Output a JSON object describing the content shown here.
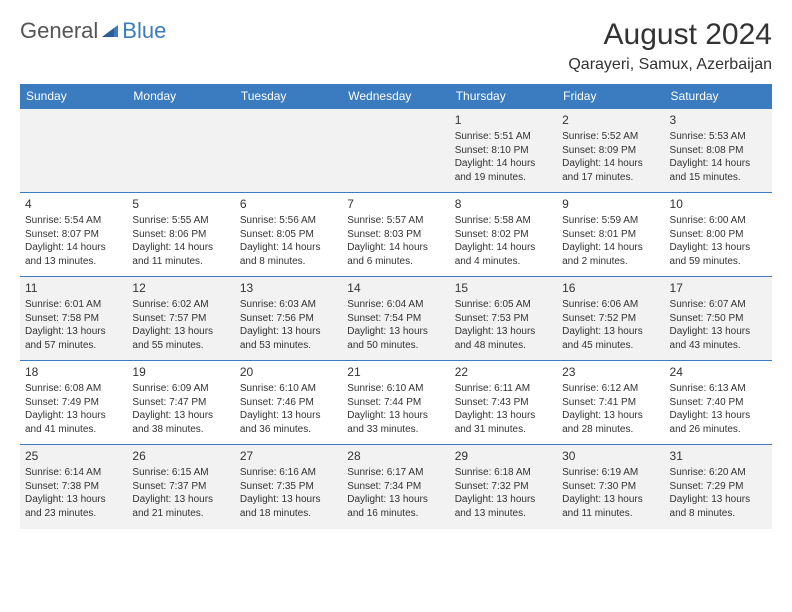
{
  "logo": {
    "part1": "General",
    "part2": "Blue"
  },
  "title": "August 2024",
  "location": "Qarayeri, Samux, Azerbaijan",
  "colors": {
    "header_bg": "#3b7bbf",
    "header_text": "#ffffff",
    "row_even_bg": "#f2f2f2",
    "row_odd_bg": "#ffffff",
    "border": "#3b7bbf",
    "text": "#333333"
  },
  "days_of_week": [
    "Sunday",
    "Monday",
    "Tuesday",
    "Wednesday",
    "Thursday",
    "Friday",
    "Saturday"
  ],
  "weeks": [
    [
      null,
      null,
      null,
      null,
      {
        "n": "1",
        "sr": "Sunrise: 5:51 AM",
        "ss": "Sunset: 8:10 PM",
        "d1": "Daylight: 14 hours",
        "d2": "and 19 minutes."
      },
      {
        "n": "2",
        "sr": "Sunrise: 5:52 AM",
        "ss": "Sunset: 8:09 PM",
        "d1": "Daylight: 14 hours",
        "d2": "and 17 minutes."
      },
      {
        "n": "3",
        "sr": "Sunrise: 5:53 AM",
        "ss": "Sunset: 8:08 PM",
        "d1": "Daylight: 14 hours",
        "d2": "and 15 minutes."
      }
    ],
    [
      {
        "n": "4",
        "sr": "Sunrise: 5:54 AM",
        "ss": "Sunset: 8:07 PM",
        "d1": "Daylight: 14 hours",
        "d2": "and 13 minutes."
      },
      {
        "n": "5",
        "sr": "Sunrise: 5:55 AM",
        "ss": "Sunset: 8:06 PM",
        "d1": "Daylight: 14 hours",
        "d2": "and 11 minutes."
      },
      {
        "n": "6",
        "sr": "Sunrise: 5:56 AM",
        "ss": "Sunset: 8:05 PM",
        "d1": "Daylight: 14 hours",
        "d2": "and 8 minutes."
      },
      {
        "n": "7",
        "sr": "Sunrise: 5:57 AM",
        "ss": "Sunset: 8:03 PM",
        "d1": "Daylight: 14 hours",
        "d2": "and 6 minutes."
      },
      {
        "n": "8",
        "sr": "Sunrise: 5:58 AM",
        "ss": "Sunset: 8:02 PM",
        "d1": "Daylight: 14 hours",
        "d2": "and 4 minutes."
      },
      {
        "n": "9",
        "sr": "Sunrise: 5:59 AM",
        "ss": "Sunset: 8:01 PM",
        "d1": "Daylight: 14 hours",
        "d2": "and 2 minutes."
      },
      {
        "n": "10",
        "sr": "Sunrise: 6:00 AM",
        "ss": "Sunset: 8:00 PM",
        "d1": "Daylight: 13 hours",
        "d2": "and 59 minutes."
      }
    ],
    [
      {
        "n": "11",
        "sr": "Sunrise: 6:01 AM",
        "ss": "Sunset: 7:58 PM",
        "d1": "Daylight: 13 hours",
        "d2": "and 57 minutes."
      },
      {
        "n": "12",
        "sr": "Sunrise: 6:02 AM",
        "ss": "Sunset: 7:57 PM",
        "d1": "Daylight: 13 hours",
        "d2": "and 55 minutes."
      },
      {
        "n": "13",
        "sr": "Sunrise: 6:03 AM",
        "ss": "Sunset: 7:56 PM",
        "d1": "Daylight: 13 hours",
        "d2": "and 53 minutes."
      },
      {
        "n": "14",
        "sr": "Sunrise: 6:04 AM",
        "ss": "Sunset: 7:54 PM",
        "d1": "Daylight: 13 hours",
        "d2": "and 50 minutes."
      },
      {
        "n": "15",
        "sr": "Sunrise: 6:05 AM",
        "ss": "Sunset: 7:53 PM",
        "d1": "Daylight: 13 hours",
        "d2": "and 48 minutes."
      },
      {
        "n": "16",
        "sr": "Sunrise: 6:06 AM",
        "ss": "Sunset: 7:52 PM",
        "d1": "Daylight: 13 hours",
        "d2": "and 45 minutes."
      },
      {
        "n": "17",
        "sr": "Sunrise: 6:07 AM",
        "ss": "Sunset: 7:50 PM",
        "d1": "Daylight: 13 hours",
        "d2": "and 43 minutes."
      }
    ],
    [
      {
        "n": "18",
        "sr": "Sunrise: 6:08 AM",
        "ss": "Sunset: 7:49 PM",
        "d1": "Daylight: 13 hours",
        "d2": "and 41 minutes."
      },
      {
        "n": "19",
        "sr": "Sunrise: 6:09 AM",
        "ss": "Sunset: 7:47 PM",
        "d1": "Daylight: 13 hours",
        "d2": "and 38 minutes."
      },
      {
        "n": "20",
        "sr": "Sunrise: 6:10 AM",
        "ss": "Sunset: 7:46 PM",
        "d1": "Daylight: 13 hours",
        "d2": "and 36 minutes."
      },
      {
        "n": "21",
        "sr": "Sunrise: 6:10 AM",
        "ss": "Sunset: 7:44 PM",
        "d1": "Daylight: 13 hours",
        "d2": "and 33 minutes."
      },
      {
        "n": "22",
        "sr": "Sunrise: 6:11 AM",
        "ss": "Sunset: 7:43 PM",
        "d1": "Daylight: 13 hours",
        "d2": "and 31 minutes."
      },
      {
        "n": "23",
        "sr": "Sunrise: 6:12 AM",
        "ss": "Sunset: 7:41 PM",
        "d1": "Daylight: 13 hours",
        "d2": "and 28 minutes."
      },
      {
        "n": "24",
        "sr": "Sunrise: 6:13 AM",
        "ss": "Sunset: 7:40 PM",
        "d1": "Daylight: 13 hours",
        "d2": "and 26 minutes."
      }
    ],
    [
      {
        "n": "25",
        "sr": "Sunrise: 6:14 AM",
        "ss": "Sunset: 7:38 PM",
        "d1": "Daylight: 13 hours",
        "d2": "and 23 minutes."
      },
      {
        "n": "26",
        "sr": "Sunrise: 6:15 AM",
        "ss": "Sunset: 7:37 PM",
        "d1": "Daylight: 13 hours",
        "d2": "and 21 minutes."
      },
      {
        "n": "27",
        "sr": "Sunrise: 6:16 AM",
        "ss": "Sunset: 7:35 PM",
        "d1": "Daylight: 13 hours",
        "d2": "and 18 minutes."
      },
      {
        "n": "28",
        "sr": "Sunrise: 6:17 AM",
        "ss": "Sunset: 7:34 PM",
        "d1": "Daylight: 13 hours",
        "d2": "and 16 minutes."
      },
      {
        "n": "29",
        "sr": "Sunrise: 6:18 AM",
        "ss": "Sunset: 7:32 PM",
        "d1": "Daylight: 13 hours",
        "d2": "and 13 minutes."
      },
      {
        "n": "30",
        "sr": "Sunrise: 6:19 AM",
        "ss": "Sunset: 7:30 PM",
        "d1": "Daylight: 13 hours",
        "d2": "and 11 minutes."
      },
      {
        "n": "31",
        "sr": "Sunrise: 6:20 AM",
        "ss": "Sunset: 7:29 PM",
        "d1": "Daylight: 13 hours",
        "d2": "and 8 minutes."
      }
    ]
  ]
}
